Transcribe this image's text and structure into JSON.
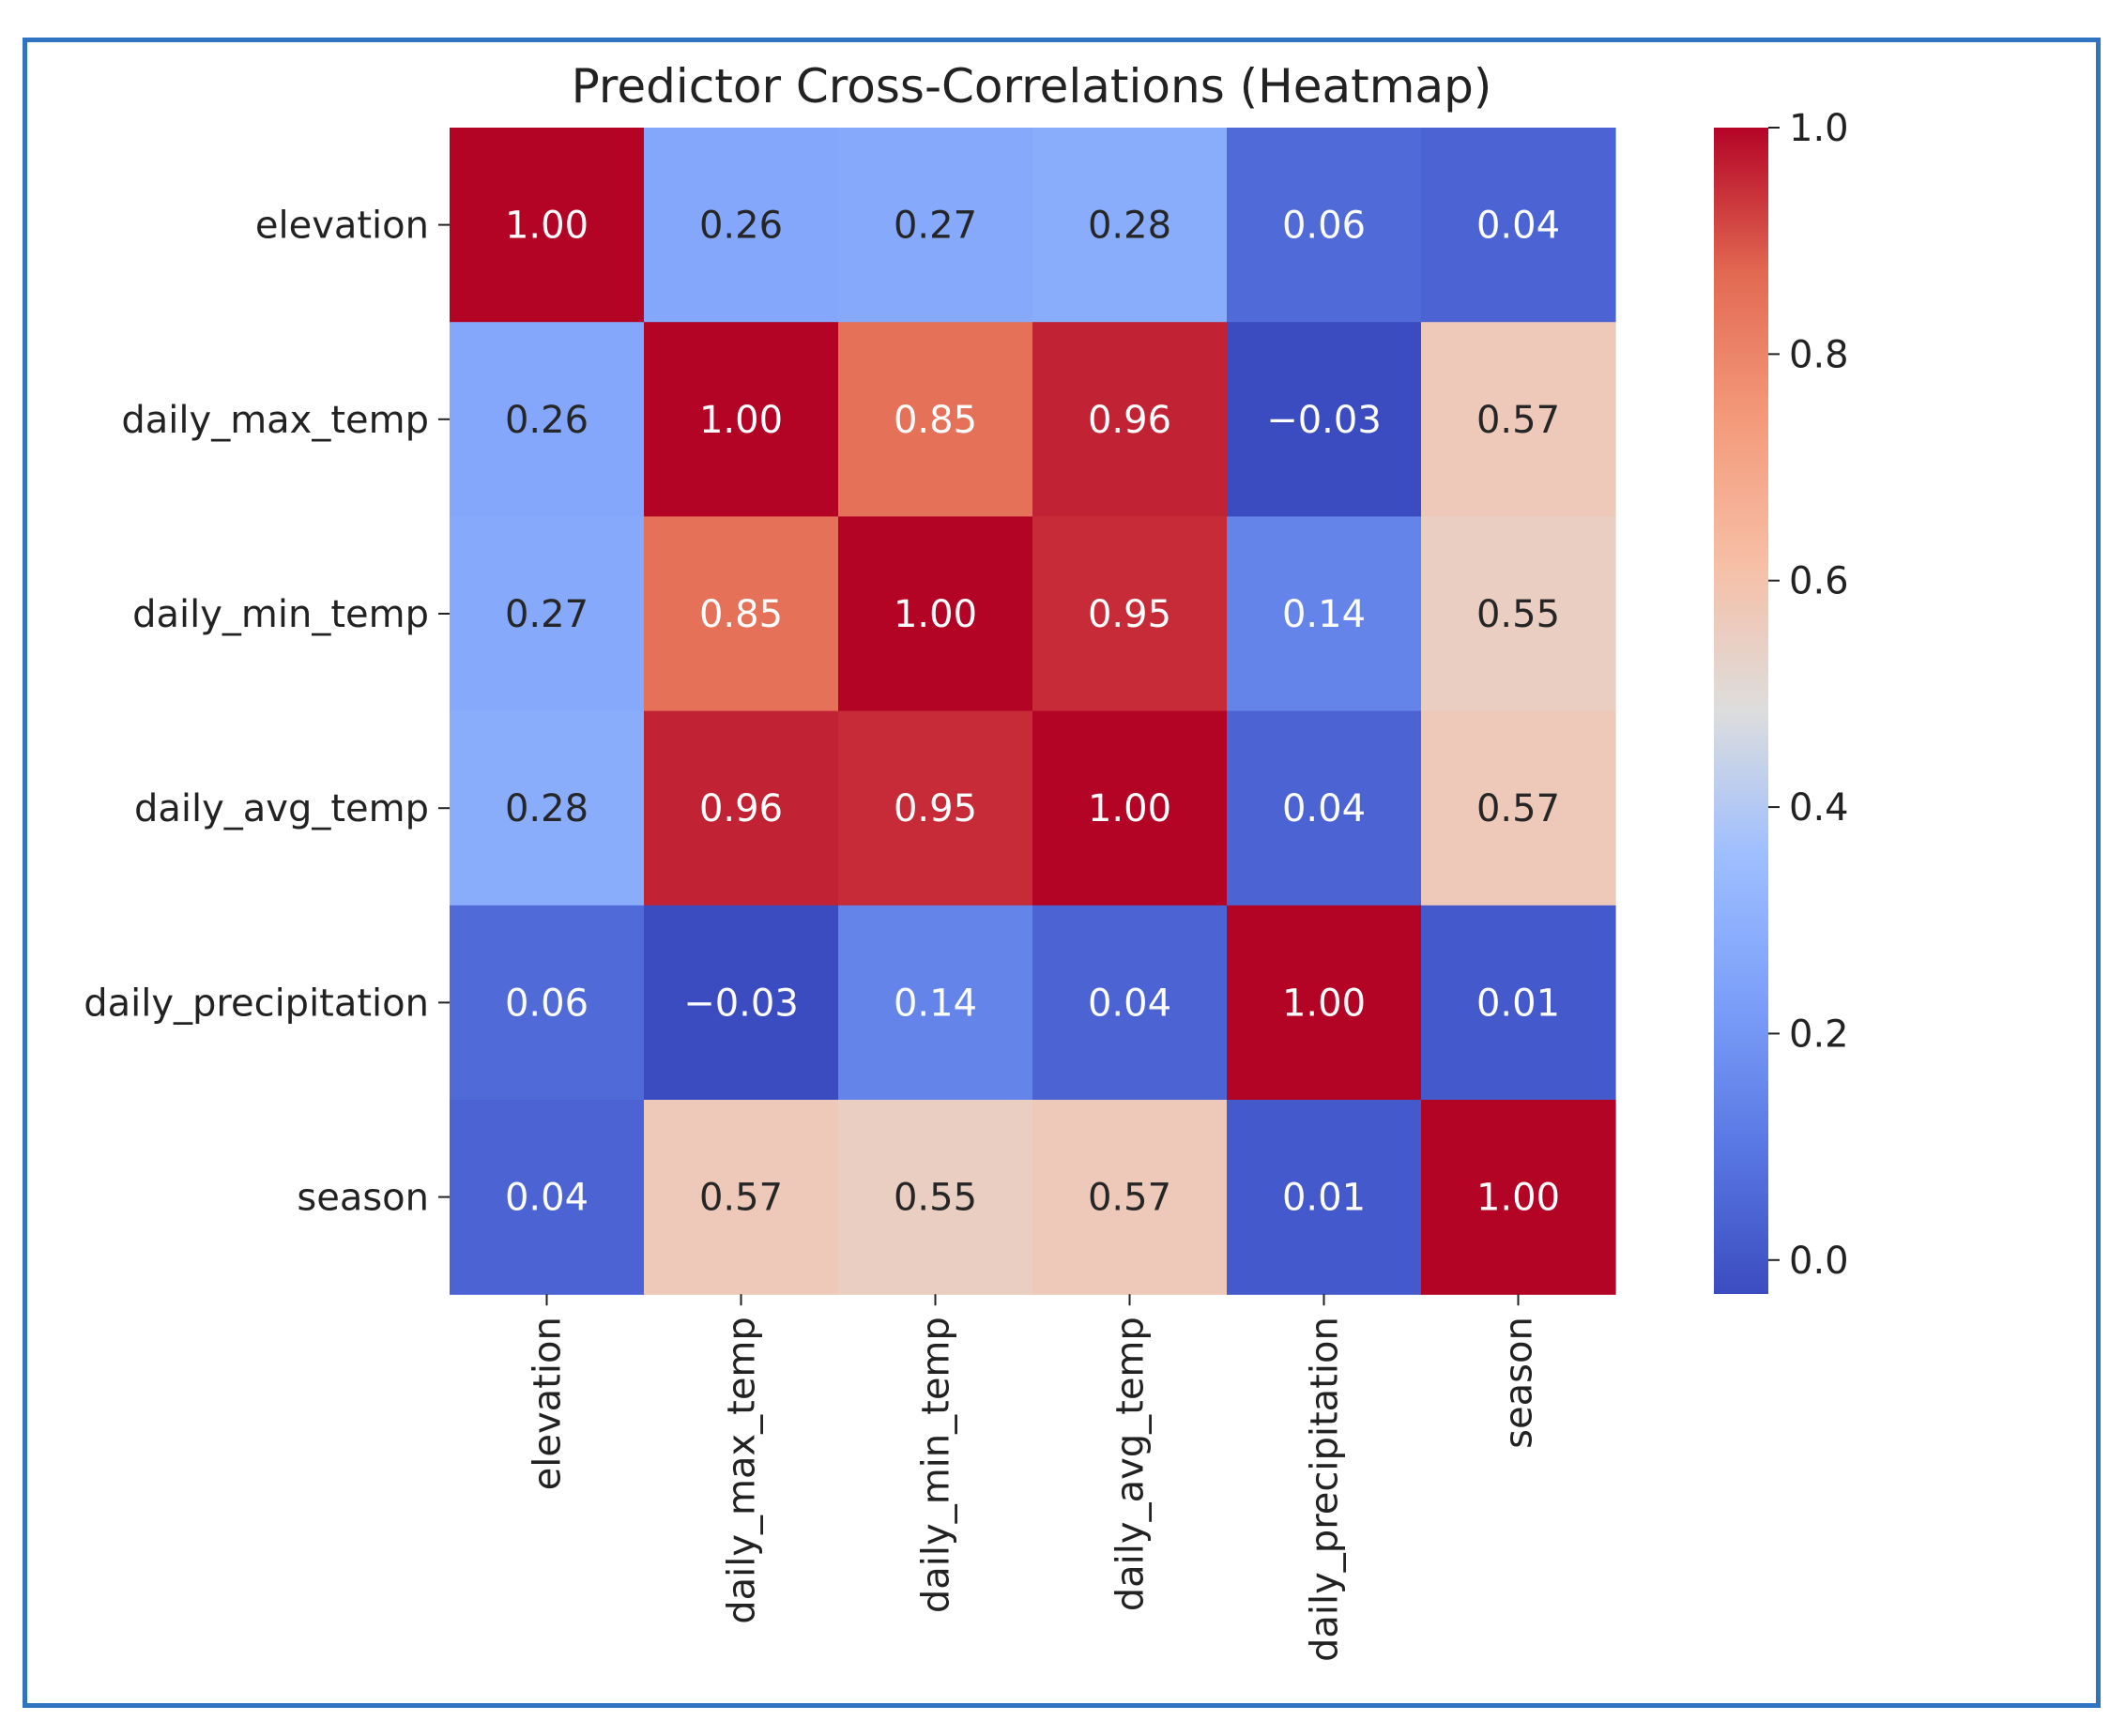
{
  "chart_data": {
    "type": "heatmap",
    "title": "Predictor Cross-Correlations (Heatmap)",
    "row_labels": [
      "elevation",
      "daily_max_temp",
      "daily_min_temp",
      "daily_avg_temp",
      "daily_precipitation",
      "season"
    ],
    "col_labels": [
      "elevation",
      "daily_max_temp",
      "daily_min_temp",
      "daily_avg_temp",
      "daily_precipitation",
      "season"
    ],
    "values": [
      [
        1.0,
        0.26,
        0.27,
        0.28,
        0.06,
        0.04
      ],
      [
        0.26,
        1.0,
        0.85,
        0.96,
        -0.03,
        0.57
      ],
      [
        0.27,
        0.85,
        1.0,
        0.95,
        0.14,
        0.55
      ],
      [
        0.28,
        0.96,
        0.95,
        1.0,
        0.04,
        0.57
      ],
      [
        0.06,
        -0.03,
        0.14,
        0.04,
        1.0,
        0.01
      ],
      [
        0.04,
        0.57,
        0.55,
        0.57,
        0.01,
        1.0
      ]
    ],
    "cell_labels": [
      [
        "1.00",
        "0.26",
        "0.27",
        "0.28",
        "0.06",
        "0.04"
      ],
      [
        "0.26",
        "1.00",
        "0.85",
        "0.96",
        "−0.03",
        "0.57"
      ],
      [
        "0.27",
        "0.85",
        "1.00",
        "0.95",
        "0.14",
        "0.55"
      ],
      [
        "0.28",
        "0.96",
        "0.95",
        "1.00",
        "0.04",
        "0.57"
      ],
      [
        "0.06",
        "−0.03",
        "0.14",
        "0.04",
        "1.00",
        "0.01"
      ],
      [
        "0.04",
        "0.57",
        "0.55",
        "0.57",
        "0.01",
        "1.00"
      ]
    ],
    "colormap": "coolwarm",
    "vmin": -0.03,
    "vmax": 1.0,
    "colorbar_ticks": [
      "0.0",
      "0.2",
      "0.4",
      "0.6",
      "0.8",
      "1.0"
    ],
    "colorbar_tick_values": [
      0.0,
      0.2,
      0.4,
      0.6,
      0.8,
      1.0
    ]
  },
  "colors": {
    "border": "#2e74c0",
    "low": "#3b4cc0",
    "mid": "#dddddd",
    "high": "#b40426"
  }
}
